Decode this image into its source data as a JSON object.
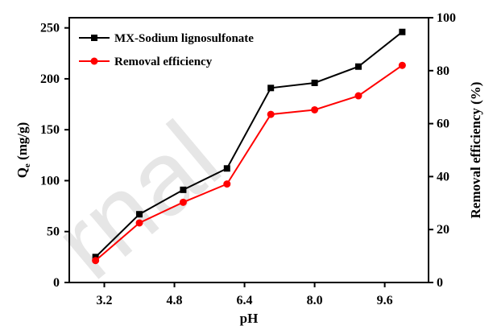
{
  "chart_data": {
    "type": "line",
    "x": [
      3.0,
      4.0,
      5.0,
      6.0,
      7.0,
      8.0,
      9.0,
      10.0
    ],
    "xlabel": "pH",
    "xlim": [
      2.4,
      10.6
    ],
    "xticks": [
      "3.2",
      "4.8",
      "6.4",
      "8.0",
      "9.6"
    ],
    "xtick_values": [
      3.2,
      4.8,
      6.4,
      8.0,
      9.6
    ],
    "ylabel": "Q",
    "ylabel_sub": "e",
    "ylabel_unit": "(mg/g)",
    "ylim": [
      0,
      260
    ],
    "yticks": [
      "0",
      "50",
      "100",
      "150",
      "200",
      "250"
    ],
    "ytick_values": [
      0,
      50,
      100,
      150,
      200,
      250
    ],
    "y2label": "Removal efficiency (%)",
    "y2lim": [
      0,
      100
    ],
    "y2ticks": [
      "0",
      "20",
      "40",
      "60",
      "80",
      "100"
    ],
    "y2tick_values": [
      0,
      20,
      40,
      60,
      80,
      100
    ],
    "series": [
      {
        "name": "MX-Sodium lignosulfonate",
        "axis": "left",
        "color": "#000000",
        "marker": "square",
        "values": [
          25,
          67,
          91,
          112,
          191,
          196,
          212,
          246
        ]
      },
      {
        "name": "Removal efficiency",
        "axis": "right",
        "color": "#ff0000",
        "marker": "circle",
        "values": [
          8.3,
          22.5,
          30.3,
          37.2,
          63.5,
          65.2,
          70.5,
          82.0
        ]
      }
    ],
    "legend_position": "top-left",
    "grid": false
  },
  "watermark": "rnal"
}
